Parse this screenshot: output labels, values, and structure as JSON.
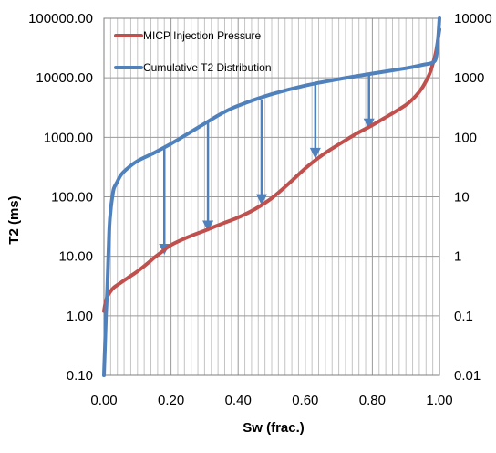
{
  "chart_data": {
    "type": "line",
    "title": "",
    "xlabel": "Sw (frac.)",
    "ylabel": "T2 (ms)",
    "ylabel_right": "",
    "y_scale": "log",
    "y2_scale": "log",
    "xlim": [
      0,
      1
    ],
    "ylim": [
      0.1,
      100000
    ],
    "y2lim": [
      0.01,
      10000
    ],
    "x_ticks": [
      "0.00",
      "0.20",
      "0.40",
      "0.60",
      "0.80",
      "1.00"
    ],
    "y_ticks": [
      "0.10",
      "1.00",
      "10.00",
      "100.00",
      "1000.00",
      "10000.00",
      "100000.00"
    ],
    "y2_ticks": [
      "0.01",
      "0.1",
      "1",
      "10",
      "100",
      "1000",
      "10000"
    ],
    "grid": true,
    "legend_position": "top-left",
    "series": [
      {
        "name": "MICP Injection Pressure",
        "color": "#c0504d",
        "axis": "left",
        "x": [
          0.0,
          0.005,
          0.01,
          0.02,
          0.03,
          0.05,
          0.07,
          0.1,
          0.13,
          0.15,
          0.17,
          0.2,
          0.25,
          0.3,
          0.35,
          0.4,
          0.45,
          0.5,
          0.55,
          0.6,
          0.65,
          0.7,
          0.75,
          0.8,
          0.85,
          0.9,
          0.93,
          0.95,
          0.97,
          0.98,
          0.99,
          1.0
        ],
        "y": [
          1.2,
          1.7,
          2.1,
          2.6,
          3.0,
          3.6,
          4.3,
          5.6,
          7.6,
          9.5,
          11.6,
          15.5,
          21,
          27,
          35,
          45,
          62,
          95,
          165,
          300,
          500,
          760,
          1130,
          1600,
          2350,
          3500,
          5000,
          7000,
          11500,
          17000,
          28000,
          65000
        ]
      },
      {
        "name": "Cumulative T2 Distribution",
        "color": "#4f81bd",
        "axis": "left",
        "x": [
          0.0,
          0.003,
          0.006,
          0.01,
          0.013,
          0.016,
          0.02,
          0.025,
          0.03,
          0.04,
          0.05,
          0.07,
          0.1,
          0.15,
          0.2,
          0.25,
          0.3,
          0.35,
          0.4,
          0.5,
          0.6,
          0.7,
          0.8,
          0.9,
          0.95,
          0.98,
          0.99,
          0.995,
          1.0
        ],
        "y": [
          0.1,
          0.3,
          1.0,
          3.0,
          10,
          30,
          60,
          100,
          140,
          180,
          230,
          300,
          400,
          550,
          780,
          1150,
          1700,
          2500,
          3400,
          5300,
          7400,
          9500,
          11800,
          14500,
          16500,
          18000,
          22000,
          40000,
          100000
        ]
      }
    ],
    "annotations": [
      {
        "type": "arrow",
        "x": 0.18,
        "y_from": 700,
        "y_to": 11
      },
      {
        "type": "arrow",
        "x": 0.31,
        "y_from": 1900,
        "y_to": 27
      },
      {
        "type": "arrow",
        "x": 0.47,
        "y_from": 4300,
        "y_to": 75
      },
      {
        "type": "arrow",
        "x": 0.63,
        "y_from": 7800,
        "y_to": 450
      },
      {
        "type": "arrow",
        "x": 0.79,
        "y_from": 11000,
        "y_to": 1400
      }
    ]
  }
}
